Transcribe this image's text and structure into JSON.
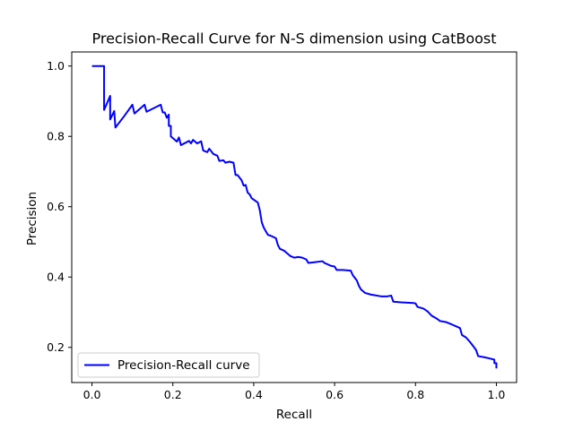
{
  "chart_data": {
    "type": "line",
    "title": "Precision-Recall Curve for N-S dimension using CatBoost",
    "xlabel": "Recall",
    "ylabel": "Precision",
    "xlim": [
      -0.05,
      1.05
    ],
    "ylim": [
      0.1,
      1.04
    ],
    "xticks": [
      0.0,
      0.2,
      0.4,
      0.6,
      0.8,
      1.0
    ],
    "xtick_labels": [
      "0.0",
      "0.2",
      "0.4",
      "0.6",
      "0.8",
      "1.0"
    ],
    "yticks": [
      0.2,
      0.4,
      0.6,
      0.8,
      1.0
    ],
    "ytick_labels": [
      "0.2",
      "0.4",
      "0.6",
      "0.8",
      "1.0"
    ],
    "grid": false,
    "legend_position": "lower-left",
    "series": [
      {
        "name": "Precision-Recall curve",
        "color": "#0000ff",
        "points": [
          [
            0.0,
            1.0
          ],
          [
            0.03,
            1.0
          ],
          [
            0.03,
            0.875
          ],
          [
            0.045,
            0.915
          ],
          [
            0.045,
            0.848
          ],
          [
            0.055,
            0.872
          ],
          [
            0.058,
            0.825
          ],
          [
            0.08,
            0.858
          ],
          [
            0.1,
            0.89
          ],
          [
            0.105,
            0.865
          ],
          [
            0.13,
            0.89
          ],
          [
            0.135,
            0.87
          ],
          [
            0.17,
            0.89
          ],
          [
            0.175,
            0.868
          ],
          [
            0.18,
            0.868
          ],
          [
            0.185,
            0.853
          ],
          [
            0.19,
            0.862
          ],
          [
            0.19,
            0.83
          ],
          [
            0.195,
            0.83
          ],
          [
            0.195,
            0.8
          ],
          [
            0.205,
            0.79
          ],
          [
            0.21,
            0.785
          ],
          [
            0.215,
            0.797
          ],
          [
            0.22,
            0.775
          ],
          [
            0.24,
            0.787
          ],
          [
            0.245,
            0.78
          ],
          [
            0.25,
            0.79
          ],
          [
            0.255,
            0.785
          ],
          [
            0.26,
            0.78
          ],
          [
            0.27,
            0.786
          ],
          [
            0.275,
            0.76
          ],
          [
            0.285,
            0.755
          ],
          [
            0.29,
            0.765
          ],
          [
            0.3,
            0.75
          ],
          [
            0.31,
            0.745
          ],
          [
            0.315,
            0.73
          ],
          [
            0.325,
            0.732
          ],
          [
            0.33,
            0.725
          ],
          [
            0.34,
            0.728
          ],
          [
            0.35,
            0.725
          ],
          [
            0.355,
            0.69
          ],
          [
            0.36,
            0.69
          ],
          [
            0.37,
            0.675
          ],
          [
            0.375,
            0.66
          ],
          [
            0.38,
            0.662
          ],
          [
            0.385,
            0.64
          ],
          [
            0.39,
            0.635
          ],
          [
            0.395,
            0.624
          ],
          [
            0.4,
            0.62
          ],
          [
            0.41,
            0.612
          ],
          [
            0.415,
            0.59
          ],
          [
            0.42,
            0.555
          ],
          [
            0.425,
            0.54
          ],
          [
            0.43,
            0.53
          ],
          [
            0.435,
            0.52
          ],
          [
            0.445,
            0.516
          ],
          [
            0.455,
            0.51
          ],
          [
            0.46,
            0.49
          ],
          [
            0.465,
            0.48
          ],
          [
            0.475,
            0.475
          ],
          [
            0.48,
            0.47
          ],
          [
            0.49,
            0.46
          ],
          [
            0.5,
            0.455
          ],
          [
            0.51,
            0.457
          ],
          [
            0.52,
            0.455
          ],
          [
            0.53,
            0.45
          ],
          [
            0.535,
            0.44
          ],
          [
            0.55,
            0.442
          ],
          [
            0.57,
            0.445
          ],
          [
            0.575,
            0.44
          ],
          [
            0.585,
            0.435
          ],
          [
            0.59,
            0.432
          ],
          [
            0.6,
            0.43
          ],
          [
            0.605,
            0.42
          ],
          [
            0.62,
            0.42
          ],
          [
            0.64,
            0.418
          ],
          [
            0.645,
            0.405
          ],
          [
            0.655,
            0.39
          ],
          [
            0.66,
            0.375
          ],
          [
            0.665,
            0.365
          ],
          [
            0.675,
            0.355
          ],
          [
            0.69,
            0.35
          ],
          [
            0.7,
            0.348
          ],
          [
            0.715,
            0.345
          ],
          [
            0.73,
            0.345
          ],
          [
            0.74,
            0.347
          ],
          [
            0.745,
            0.33
          ],
          [
            0.765,
            0.328
          ],
          [
            0.78,
            0.327
          ],
          [
            0.795,
            0.326
          ],
          [
            0.8,
            0.325
          ],
          [
            0.805,
            0.315
          ],
          [
            0.82,
            0.31
          ],
          [
            0.83,
            0.302
          ],
          [
            0.84,
            0.29
          ],
          [
            0.855,
            0.28
          ],
          [
            0.86,
            0.275
          ],
          [
            0.875,
            0.272
          ],
          [
            0.89,
            0.265
          ],
          [
            0.9,
            0.26
          ],
          [
            0.91,
            0.255
          ],
          [
            0.915,
            0.235
          ],
          [
            0.925,
            0.228
          ],
          [
            0.935,
            0.215
          ],
          [
            0.945,
            0.2
          ],
          [
            0.95,
            0.192
          ],
          [
            0.955,
            0.175
          ],
          [
            0.97,
            0.172
          ],
          [
            0.985,
            0.168
          ],
          [
            0.995,
            0.165
          ],
          [
            0.995,
            0.155
          ],
          [
            1.0,
            0.155
          ],
          [
            1.0,
            0.14
          ]
        ]
      }
    ]
  }
}
